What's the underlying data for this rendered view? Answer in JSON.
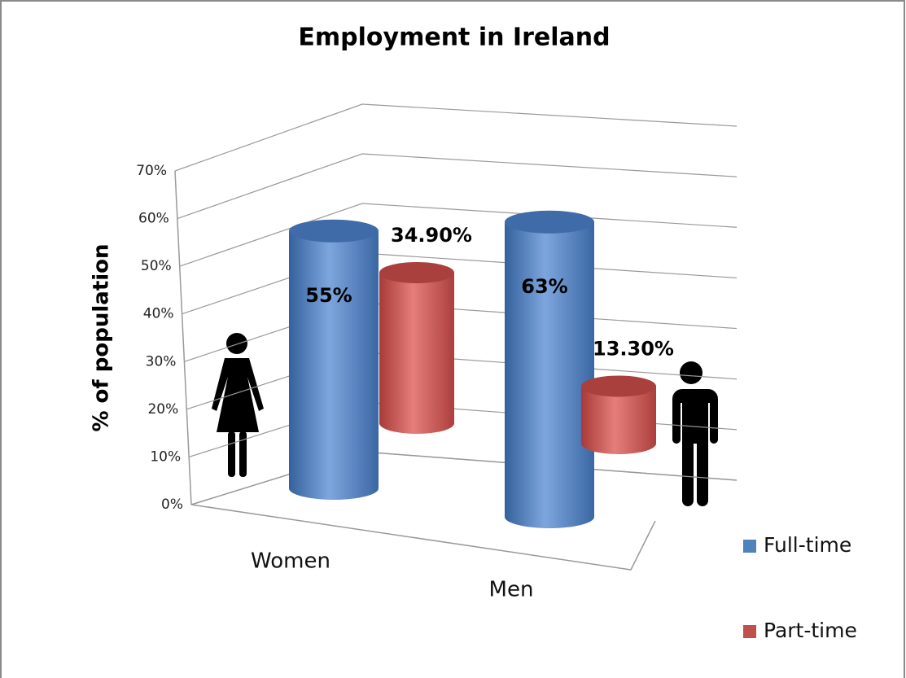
{
  "chart_data": {
    "type": "bar",
    "title": "Employment in Ireland",
    "y_label": "% of population",
    "categories": [
      "Women",
      "Men"
    ],
    "series": [
      {
        "name": "Full-time",
        "color": "#4f81bd",
        "values": [
          55,
          63
        ],
        "value_labels": [
          "55%",
          "63%"
        ]
      },
      {
        "name": "Part-time",
        "color": "#c0504d",
        "values": [
          34.9,
          13.3
        ],
        "value_labels": [
          "34.90%",
          "13.30%"
        ]
      }
    ],
    "ylim": [
      0,
      70
    ],
    "yticks": [
      {
        "value": 0,
        "label": "0%"
      },
      {
        "value": 10,
        "label": "10%"
      },
      {
        "value": 20,
        "label": "20%"
      },
      {
        "value": 30,
        "label": "30%"
      },
      {
        "value": 40,
        "label": "40%"
      },
      {
        "value": 50,
        "label": "50%"
      },
      {
        "value": 60,
        "label": "60%"
      },
      {
        "value": 70,
        "label": "70%"
      }
    ],
    "grid": true,
    "legend": "right"
  }
}
